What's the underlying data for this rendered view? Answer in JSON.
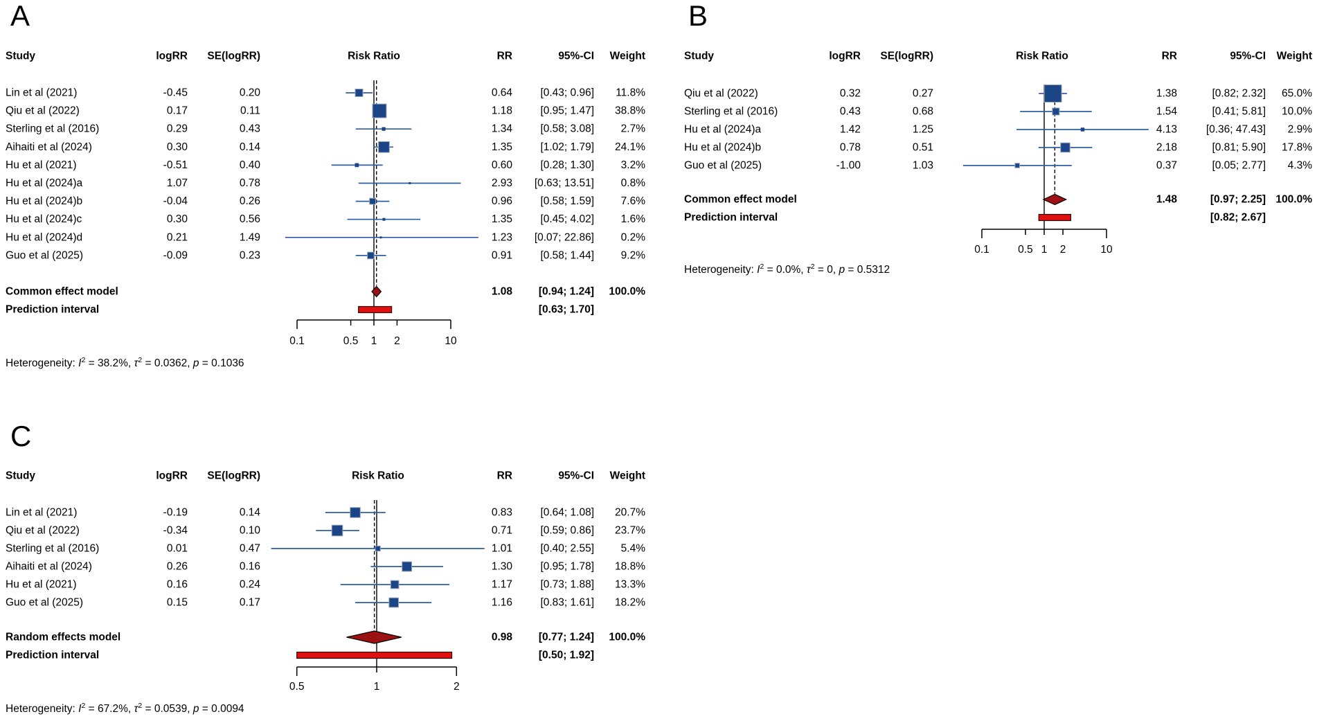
{
  "figure": {
    "background": "#ffffff"
  },
  "style": {
    "square_fill": "#1C4587",
    "square_stroke": "#9AA7B8",
    "ci_line": "#2D5DA7",
    "diamond_fill": "#9C1111",
    "diamond_stroke": "#000000",
    "prediction_fill": "#E01010",
    "prediction_stroke": "#2A0000",
    "ref_line": "#000000",
    "text": "#000000"
  },
  "chart_data": [
    {
      "id": "A",
      "panel_label": "A",
      "type": "forest",
      "effect_measure": "Risk Ratio",
      "columns": {
        "study": "Study",
        "logrr": "logRR",
        "se": "SE(logRR)",
        "plot": "Risk Ratio",
        "rr": "RR",
        "ci": "95%-CI",
        "weight": "Weight"
      },
      "studies": [
        {
          "name": "Lin et al (2021)",
          "logrr": "-0.45",
          "se": "0.20",
          "rr": 0.64,
          "rr_text": "0.64",
          "ci_low": 0.43,
          "ci_high": 0.96,
          "ci_text": "[0.43; 0.96]",
          "weight": 11.8,
          "weight_text": "11.8%"
        },
        {
          "name": "Qiu et al (2022)",
          "logrr": "0.17",
          "se": "0.11",
          "rr": 1.18,
          "rr_text": "1.18",
          "ci_low": 0.95,
          "ci_high": 1.47,
          "ci_text": "[0.95; 1.47]",
          "weight": 38.8,
          "weight_text": "38.8%"
        },
        {
          "name": "Sterling et al (2016)",
          "logrr": "0.29",
          "se": "0.43",
          "rr": 1.34,
          "rr_text": "1.34",
          "ci_low": 0.58,
          "ci_high": 3.08,
          "ci_text": "[0.58; 3.08]",
          "weight": 2.7,
          "weight_text": "2.7%"
        },
        {
          "name": "Aihaiti et al (2024)",
          "logrr": "0.30",
          "se": "0.14",
          "rr": 1.35,
          "rr_text": "1.35",
          "ci_low": 1.02,
          "ci_high": 1.79,
          "ci_text": "[1.02; 1.79]",
          "weight": 24.1,
          "weight_text": "24.1%"
        },
        {
          "name": "Hu et al (2021)",
          "logrr": "-0.51",
          "se": "0.40",
          "rr": 0.6,
          "rr_text": "0.60",
          "ci_low": 0.28,
          "ci_high": 1.3,
          "ci_text": "[0.28; 1.30]",
          "weight": 3.2,
          "weight_text": "3.2%"
        },
        {
          "name": "Hu et al (2024)a",
          "logrr": "1.07",
          "se": "0.78",
          "rr": 2.93,
          "rr_text": "2.93",
          "ci_low": 0.63,
          "ci_high": 13.51,
          "ci_text": "[0.63; 13.51]",
          "weight": 0.8,
          "weight_text": "0.8%"
        },
        {
          "name": "Hu et al (2024)b",
          "logrr": "-0.04",
          "se": "0.26",
          "rr": 0.96,
          "rr_text": "0.96",
          "ci_low": 0.58,
          "ci_high": 1.59,
          "ci_text": "[0.58; 1.59]",
          "weight": 7.6,
          "weight_text": "7.6%"
        },
        {
          "name": "Hu et al (2024)c",
          "logrr": "0.30",
          "se": "0.56",
          "rr": 1.35,
          "rr_text": "1.35",
          "ci_low": 0.45,
          "ci_high": 4.02,
          "ci_text": "[0.45; 4.02]",
          "weight": 1.6,
          "weight_text": "1.6%"
        },
        {
          "name": "Hu et al (2024)d",
          "logrr": "0.21",
          "se": "1.49",
          "rr": 1.23,
          "rr_text": "1.23",
          "ci_low": 0.07,
          "ci_high": 22.86,
          "ci_text": "[0.07; 22.86]",
          "weight": 0.2,
          "weight_text": "0.2%"
        },
        {
          "name": "Guo et al (2025)",
          "logrr": "-0.09",
          "se": "0.23",
          "rr": 0.91,
          "rr_text": "0.91",
          "ci_low": 0.58,
          "ci_high": 1.44,
          "ci_text": "[0.58; 1.44]",
          "weight": 9.2,
          "weight_text": "9.2%"
        }
      ],
      "summary": {
        "label": "Common effect model",
        "rr": 1.08,
        "rr_text": "1.08",
        "ci_low": 0.94,
        "ci_high": 1.24,
        "ci_text": "[0.94; 1.24]",
        "weight_text": "100.0%"
      },
      "prediction": {
        "label": "Prediction interval",
        "low": 0.63,
        "high": 1.7,
        "ci_text": "[0.63; 1.70]"
      },
      "axis": {
        "scale": "log",
        "ref_line": 1,
        "ticks": [
          0.1,
          0.5,
          1,
          2,
          10
        ],
        "tick_labels": [
          "0.1",
          "0.5",
          "1",
          "2",
          "10"
        ]
      },
      "heterogeneity": {
        "text_plain": "Heterogeneity: I² = 38.2%, τ² = 0.0362, p = 0.1036",
        "i2": "38.2%",
        "tau2": "0.0362",
        "p": "0.1036"
      }
    },
    {
      "id": "B",
      "panel_label": "B",
      "type": "forest",
      "effect_measure": "Risk Ratio",
      "columns": {
        "study": "Study",
        "logrr": "logRR",
        "se": "SE(logRR)",
        "plot": "Risk Ratio",
        "rr": "RR",
        "ci": "95%-CI",
        "weight": "Weight"
      },
      "studies": [
        {
          "name": "Qiu et al (2022)",
          "logrr": "0.32",
          "se": "0.27",
          "rr": 1.38,
          "rr_text": "1.38",
          "ci_low": 0.82,
          "ci_high": 2.32,
          "ci_text": "[0.82; 2.32]",
          "weight": 65.0,
          "weight_text": "65.0%"
        },
        {
          "name": "Sterling et al (2016)",
          "logrr": "0.43",
          "se": "0.68",
          "rr": 1.54,
          "rr_text": "1.54",
          "ci_low": 0.41,
          "ci_high": 5.81,
          "ci_text": "[0.41; 5.81]",
          "weight": 10.0,
          "weight_text": "10.0%"
        },
        {
          "name": "Hu et al (2024)a",
          "logrr": "1.42",
          "se": "1.25",
          "rr": 4.13,
          "rr_text": "4.13",
          "ci_low": 0.36,
          "ci_high": 47.43,
          "ci_text": "[0.36; 47.43]",
          "weight": 2.9,
          "weight_text": "2.9%"
        },
        {
          "name": "Hu et al (2024)b",
          "logrr": "0.78",
          "se": "0.51",
          "rr": 2.18,
          "rr_text": "2.18",
          "ci_low": 0.81,
          "ci_high": 5.9,
          "ci_text": "[0.81; 5.90]",
          "weight": 17.8,
          "weight_text": "17.8%"
        },
        {
          "name": "Guo et al (2025)",
          "logrr": "-1.00",
          "se": "1.03",
          "rr": 0.37,
          "rr_text": "0.37",
          "ci_low": 0.05,
          "ci_high": 2.77,
          "ci_text": "[0.05; 2.77]",
          "weight": 4.3,
          "weight_text": "4.3%"
        }
      ],
      "summary": {
        "label": "Common effect model",
        "rr": 1.48,
        "rr_text": "1.48",
        "ci_low": 0.97,
        "ci_high": 2.25,
        "ci_text": "[0.97; 2.25]",
        "weight_text": "100.0%"
      },
      "prediction": {
        "label": "Prediction interval",
        "low": 0.82,
        "high": 2.67,
        "ci_text": "[0.82; 2.67]"
      },
      "axis": {
        "scale": "log",
        "ref_line": 1,
        "ticks": [
          0.1,
          0.5,
          1,
          2,
          10
        ],
        "tick_labels": [
          "0.1",
          "0.5",
          "1",
          "2",
          "10"
        ]
      },
      "heterogeneity": {
        "text_plain": "Heterogeneity: I² = 0.0%, τ² = 0, p = 0.5312",
        "i2": "0.0%",
        "tau2": "0",
        "p": "0.5312"
      }
    },
    {
      "id": "C",
      "panel_label": "C",
      "type": "forest",
      "effect_measure": "Risk Ratio",
      "columns": {
        "study": "Study",
        "logrr": "logRR",
        "se": "SE(logRR)",
        "plot": "Risk Ratio",
        "rr": "RR",
        "ci": "95%-CI",
        "weight": "Weight"
      },
      "studies": [
        {
          "name": "Lin et al (2021)",
          "logrr": "-0.19",
          "se": "0.14",
          "rr": 0.83,
          "rr_text": "0.83",
          "ci_low": 0.64,
          "ci_high": 1.08,
          "ci_text": "[0.64; 1.08]",
          "weight": 20.7,
          "weight_text": "20.7%"
        },
        {
          "name": "Qiu et al (2022)",
          "logrr": "-0.34",
          "se": "0.10",
          "rr": 0.71,
          "rr_text": "0.71",
          "ci_low": 0.59,
          "ci_high": 0.86,
          "ci_text": "[0.59; 0.86]",
          "weight": 23.7,
          "weight_text": "23.7%"
        },
        {
          "name": "Sterling et al (2016)",
          "logrr": "0.01",
          "se": "0.47",
          "rr": 1.01,
          "rr_text": "1.01",
          "ci_low": 0.4,
          "ci_high": 2.55,
          "ci_text": "[0.40; 2.55]",
          "weight": 5.4,
          "weight_text": "5.4%"
        },
        {
          "name": "Aihaiti et al (2024)",
          "logrr": "0.26",
          "se": "0.16",
          "rr": 1.3,
          "rr_text": "1.30",
          "ci_low": 0.95,
          "ci_high": 1.78,
          "ci_text": "[0.95; 1.78]",
          "weight": 18.8,
          "weight_text": "18.8%"
        },
        {
          "name": "Hu et al (2021)",
          "logrr": "0.16",
          "se": "0.24",
          "rr": 1.17,
          "rr_text": "1.17",
          "ci_low": 0.73,
          "ci_high": 1.88,
          "ci_text": "[0.73; 1.88]",
          "weight": 13.3,
          "weight_text": "13.3%"
        },
        {
          "name": "Guo et al (2025)",
          "logrr": "0.15",
          "se": "0.17",
          "rr": 1.16,
          "rr_text": "1.16",
          "ci_low": 0.83,
          "ci_high": 1.61,
          "ci_text": "[0.83; 1.61]",
          "weight": 18.2,
          "weight_text": "18.2%"
        }
      ],
      "summary": {
        "label": "Random effects model",
        "rr": 0.98,
        "rr_text": "0.98",
        "ci_low": 0.77,
        "ci_high": 1.24,
        "ci_text": "[0.77; 1.24]",
        "weight_text": "100.0%"
      },
      "prediction": {
        "label": "Prediction interval",
        "low": 0.5,
        "high": 1.92,
        "ci_text": "[0.50; 1.92]"
      },
      "axis": {
        "scale": "log",
        "ref_line": 1,
        "ticks": [
          0.5,
          1,
          2
        ],
        "tick_labels": [
          "0.5",
          "1",
          "2"
        ]
      },
      "heterogeneity": {
        "text_plain": "Heterogeneity: I² = 67.2%, τ² = 0.0539, p = 0.0094",
        "i2": "67.2%",
        "tau2": "0.0539",
        "p": "0.0094"
      }
    }
  ]
}
